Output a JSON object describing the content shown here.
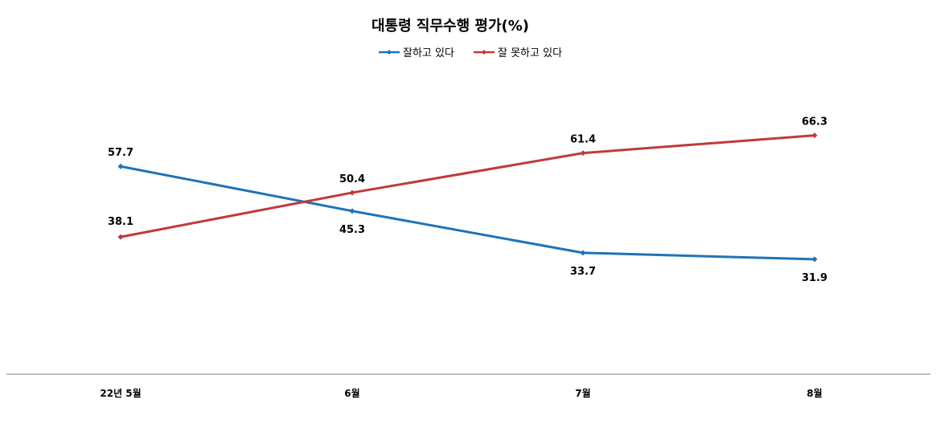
{
  "chart_data": {
    "type": "line",
    "title": "대통령 직무수행 평가(%)",
    "xlabel": "",
    "ylabel": "",
    "categories": [
      "22년 5월",
      "6월",
      "7월",
      "8월"
    ],
    "ylim": [
      0,
      100
    ],
    "grid": false,
    "legend": "top-center",
    "series": [
      {
        "name": "잘하고 있다",
        "color": "#1f73b7",
        "values": [
          57.7,
          45.3,
          33.7,
          31.9
        ]
      },
      {
        "name": "잘 못하고 있다",
        "color": "#c0393b",
        "values": [
          38.1,
          50.4,
          61.4,
          66.3
        ]
      }
    ]
  }
}
